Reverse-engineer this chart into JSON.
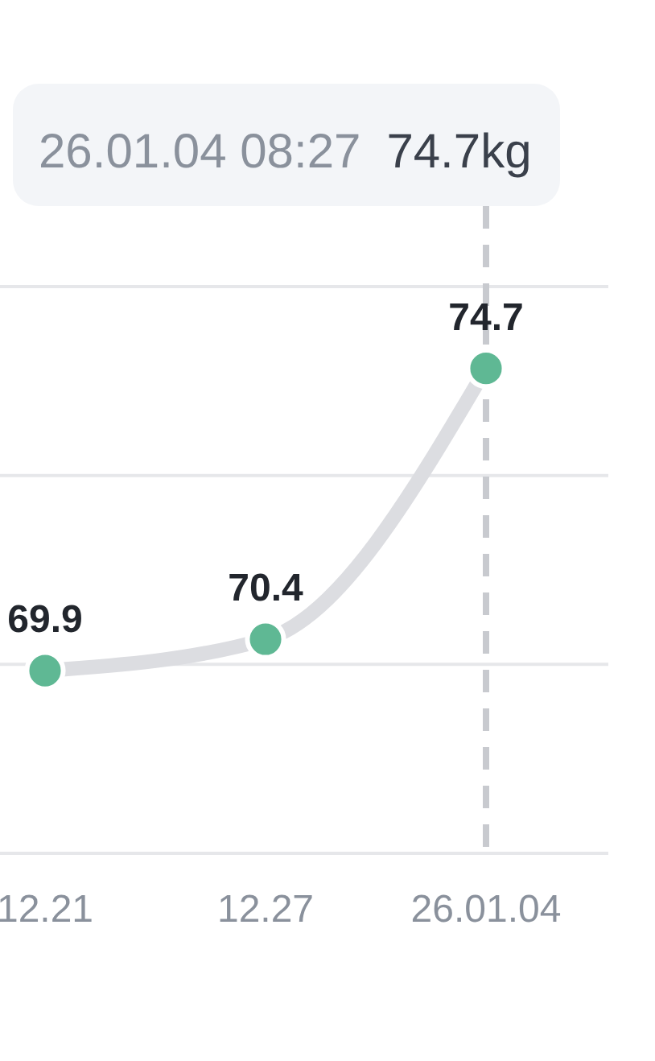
{
  "chart_data": {
    "type": "line",
    "categories": [
      "12.21",
      "12.27",
      "26.01.04"
    ],
    "series": [
      {
        "color": "#5fb894",
        "values": [
          69.9,
          70.4,
          74.7
        ]
      }
    ],
    "ylim": [
      67,
      76
    ],
    "yticks": [
      {
        "value": 67,
        "label": null
      },
      {
        "value": 70,
        "label": null
      },
      {
        "value": 73,
        "label": null
      },
      {
        "value": 76,
        "label": null
      }
    ],
    "tick_labels": "x",
    "grid": "y",
    "marker": "circle",
    "line_style": "solid",
    "data_labels": true,
    "ref_lines": [
      {
        "axis": "x",
        "value": "26.01.04",
        "color": "#c8cacf",
        "line_style": "dashed"
      }
    ],
    "annotations": [
      "26.01.04 08:27",
      "74.7kg"
    ]
  }
}
